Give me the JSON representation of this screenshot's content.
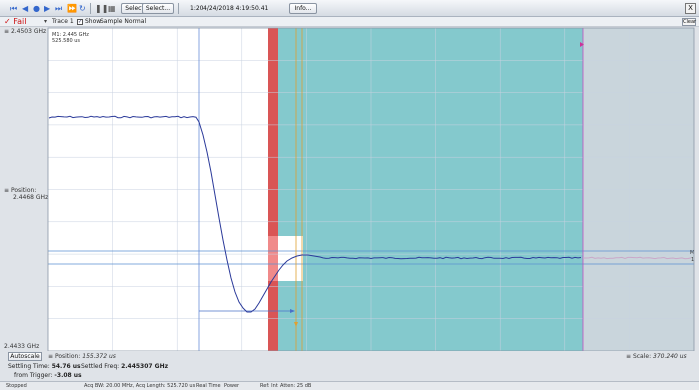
{
  "toolbar": {
    "select_all": "Select all",
    "select": "Select...",
    "zoom": "1:20",
    "datetime": "4/24/2018 4:19:50.41",
    "info": "Info...",
    "close": "X",
    "icons": [
      "skip-back-icon",
      "prev-icon",
      "stop-icon",
      "play-icon",
      "step-icon",
      "fast-forward-icon",
      "refresh-icon",
      "pause-icon",
      "grid-icon"
    ]
  },
  "status": {
    "fail": "Fail",
    "trace": "Trace 1",
    "show": "Show",
    "mode": "Sample Normal",
    "clear": "Clear"
  },
  "plot": {
    "y_top": "2.4503 GHz",
    "y_mid_1": "Position:",
    "y_mid_2": "2.4468 GHz",
    "y_bottom": "2.4433 GHz",
    "marker_freq": "M1: 2.445 GHz",
    "marker_time": "525.580 us",
    "right_marker": "M",
    "right_marker2": "1",
    "colors": {
      "trace": "#2b3a9a",
      "mask_red": "#e85a5a",
      "settle_band": "#6fc0c4",
      "grid": "#c8d2e0"
    }
  },
  "bottom": {
    "autoscale": "Autoscale",
    "position_label": "Position:",
    "position_value": "155.372 us",
    "scale_label": "Scale:",
    "scale_value": "370.240 us",
    "settling_time_label": "Settling Time:",
    "settling_time_value": "54.76 us",
    "settled_freq_label": "Settled Freq:",
    "settled_freq_value": "2.445307 GHz",
    "from_trigger_label": "from Trigger:",
    "from_trigger_value": "-3.08 us"
  },
  "statusbar": {
    "state": "Stopped",
    "acq": "Acq BW: 20.00 MHz, Acq Length: 525.720 us",
    "realtime": "Real Time",
    "power": "Power",
    "ref": "Ref: Int",
    "atten": "Atten: 25 dB"
  }
}
